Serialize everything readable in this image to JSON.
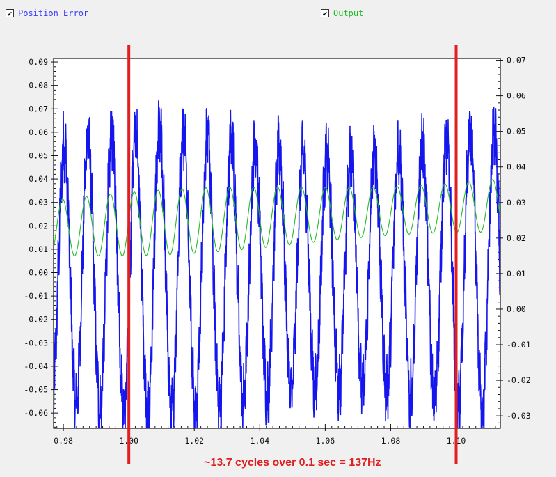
{
  "legend": [
    {
      "label": "Position Error",
      "checked": true,
      "color": "#3a3aff",
      "check_glyph": "✔"
    },
    {
      "label": "Output",
      "checked": true,
      "color": "#22bb22",
      "check_glyph": "✔"
    }
  ],
  "chart_data": {
    "type": "line",
    "grid": false,
    "xlim": [
      0.977,
      1.1135
    ],
    "x_ticks": [
      "0.98",
      "1.00",
      "1.02",
      "1.04",
      "1.06",
      "1.08",
      "1.10"
    ],
    "y_left": {
      "lim": [
        -0.0665,
        0.0915
      ],
      "ticks": [
        "0.09",
        "0.08",
        "0.07",
        "0.06",
        "0.05",
        "0.04",
        "0.03",
        "0.02",
        "0.01",
        "0.00",
        "-0.01",
        "-0.02",
        "-0.03",
        "-0.04",
        "-0.05",
        "-0.06"
      ]
    },
    "y_right": {
      "lim": [
        -0.0335,
        0.0705
      ],
      "ticks": [
        "0.07",
        "0.06",
        "0.05",
        "0.04",
        "0.03",
        "0.02",
        "0.01",
        "0.00",
        "-0.01",
        "-0.02",
        "-0.03"
      ]
    },
    "series": [
      {
        "name": "Position Error",
        "axis": "left",
        "color": "#1515ee",
        "frequency_hz": 137,
        "amplitude": 0.055,
        "offset": 0.0
      },
      {
        "name": "Output",
        "axis": "right",
        "color": "#22bb22",
        "frequency_hz": 137,
        "amplitude": 0.008,
        "offset": 0.023
      }
    ],
    "markers": [
      {
        "x": 1.0,
        "color": "#e02020"
      },
      {
        "x": 1.1,
        "color": "#e02020"
      }
    ],
    "annotation": {
      "text": "~13.7 cycles over 0.1 sec = 137Hz",
      "color": "#e02020"
    }
  }
}
